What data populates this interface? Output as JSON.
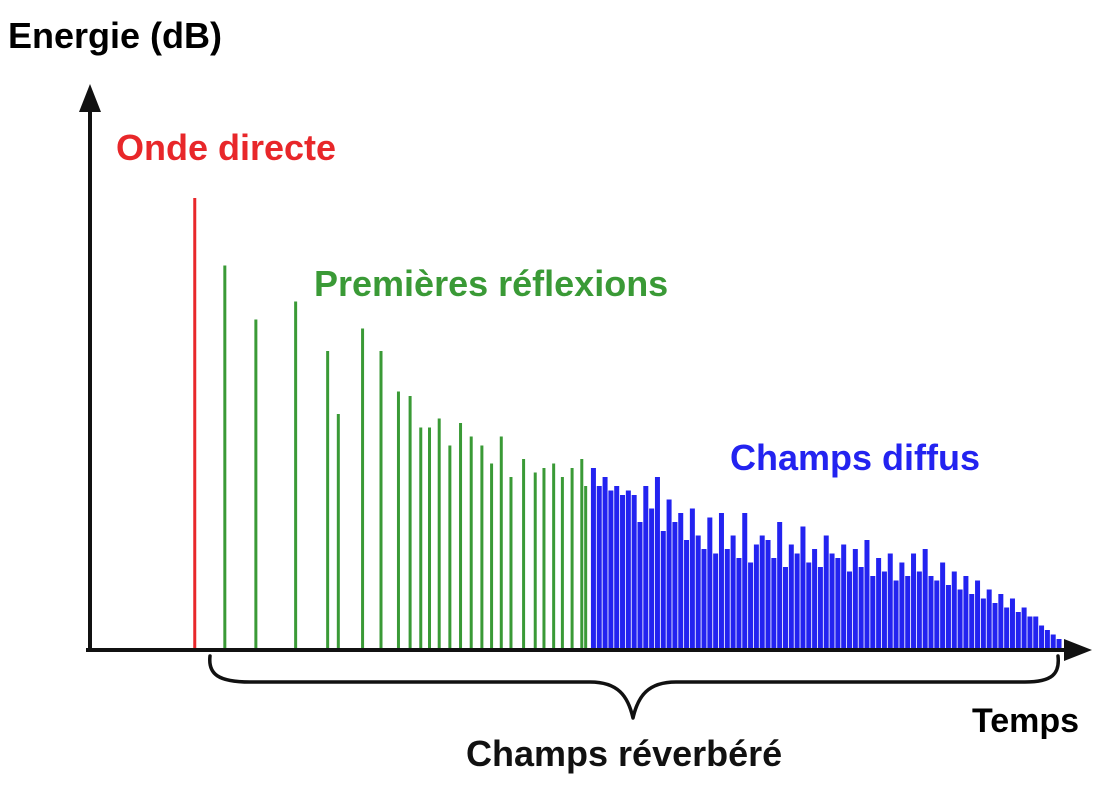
{
  "labels": {
    "y_axis": "Energie (dB)",
    "x_axis": "Temps",
    "direct": "Onde directe",
    "early": "Premières réflexions",
    "diffuse": "Champs diffus",
    "reverberant": "Champs réverbéré"
  },
  "colors": {
    "axis": "#111111",
    "direct": "#e8272a",
    "early": "#3a9a36",
    "diffuse": "#2323f0",
    "text": "#111111"
  },
  "chart_data": {
    "type": "bar",
    "x_range": [
      0,
      1
    ],
    "y_range": [
      0,
      1
    ],
    "series": [
      {
        "name": "Onde directe",
        "color_key": "direct",
        "points": [
          [
            0.108,
            1.0
          ]
        ]
      },
      {
        "name": "Premières réflexions",
        "color_key": "early",
        "points": [
          [
            0.139,
            0.85
          ],
          [
            0.171,
            0.73
          ],
          [
            0.212,
            0.77
          ],
          [
            0.245,
            0.66
          ],
          [
            0.256,
            0.52
          ],
          [
            0.281,
            0.71
          ],
          [
            0.3,
            0.66
          ],
          [
            0.318,
            0.57
          ],
          [
            0.33,
            0.56
          ],
          [
            0.341,
            0.49
          ],
          [
            0.35,
            0.49
          ],
          [
            0.36,
            0.51
          ],
          [
            0.371,
            0.45
          ],
          [
            0.382,
            0.5
          ],
          [
            0.393,
            0.47
          ],
          [
            0.404,
            0.45
          ],
          [
            0.414,
            0.41
          ],
          [
            0.424,
            0.47
          ],
          [
            0.434,
            0.38
          ],
          [
            0.447,
            0.42
          ],
          [
            0.459,
            0.39
          ],
          [
            0.468,
            0.4
          ],
          [
            0.478,
            0.41
          ],
          [
            0.487,
            0.38
          ],
          [
            0.497,
            0.4
          ],
          [
            0.507,
            0.42
          ],
          [
            0.511,
            0.36
          ]
        ]
      },
      {
        "name": "Champs diffus",
        "color_key": "diffuse",
        "points": [
          [
            0.519,
            0.4
          ],
          [
            0.525,
            0.36
          ],
          [
            0.531,
            0.38
          ],
          [
            0.537,
            0.35
          ],
          [
            0.543,
            0.36
          ],
          [
            0.549,
            0.34
          ],
          [
            0.555,
            0.35
          ],
          [
            0.561,
            0.34
          ],
          [
            0.567,
            0.28
          ],
          [
            0.573,
            0.36
          ],
          [
            0.579,
            0.31
          ],
          [
            0.585,
            0.38
          ],
          [
            0.591,
            0.26
          ],
          [
            0.597,
            0.33
          ],
          [
            0.603,
            0.28
          ],
          [
            0.609,
            0.3
          ],
          [
            0.615,
            0.24
          ],
          [
            0.621,
            0.31
          ],
          [
            0.627,
            0.25
          ],
          [
            0.633,
            0.22
          ],
          [
            0.639,
            0.29
          ],
          [
            0.645,
            0.21
          ],
          [
            0.651,
            0.3
          ],
          [
            0.657,
            0.22
          ],
          [
            0.663,
            0.25
          ],
          [
            0.669,
            0.2
          ],
          [
            0.675,
            0.3
          ],
          [
            0.681,
            0.19
          ],
          [
            0.687,
            0.23
          ],
          [
            0.693,
            0.25
          ],
          [
            0.699,
            0.24
          ],
          [
            0.705,
            0.2
          ],
          [
            0.711,
            0.28
          ],
          [
            0.717,
            0.18
          ],
          [
            0.723,
            0.23
          ],
          [
            0.729,
            0.21
          ],
          [
            0.735,
            0.27
          ],
          [
            0.741,
            0.19
          ],
          [
            0.747,
            0.22
          ],
          [
            0.753,
            0.18
          ],
          [
            0.759,
            0.25
          ],
          [
            0.765,
            0.21
          ],
          [
            0.771,
            0.2
          ],
          [
            0.777,
            0.23
          ],
          [
            0.783,
            0.17
          ],
          [
            0.789,
            0.22
          ],
          [
            0.795,
            0.18
          ],
          [
            0.801,
            0.24
          ],
          [
            0.807,
            0.16
          ],
          [
            0.813,
            0.2
          ],
          [
            0.819,
            0.17
          ],
          [
            0.825,
            0.21
          ],
          [
            0.831,
            0.15
          ],
          [
            0.837,
            0.19
          ],
          [
            0.843,
            0.16
          ],
          [
            0.849,
            0.21
          ],
          [
            0.855,
            0.17
          ],
          [
            0.861,
            0.22
          ],
          [
            0.867,
            0.16
          ],
          [
            0.873,
            0.15
          ],
          [
            0.879,
            0.19
          ],
          [
            0.885,
            0.14
          ],
          [
            0.891,
            0.17
          ],
          [
            0.897,
            0.13
          ],
          [
            0.903,
            0.16
          ],
          [
            0.909,
            0.12
          ],
          [
            0.915,
            0.15
          ],
          [
            0.921,
            0.11
          ],
          [
            0.927,
            0.13
          ],
          [
            0.933,
            0.1
          ],
          [
            0.939,
            0.12
          ],
          [
            0.945,
            0.09
          ],
          [
            0.951,
            0.11
          ],
          [
            0.957,
            0.08
          ],
          [
            0.963,
            0.09
          ],
          [
            0.969,
            0.07
          ],
          [
            0.975,
            0.07
          ],
          [
            0.981,
            0.05
          ],
          [
            0.987,
            0.04
          ],
          [
            0.993,
            0.03
          ],
          [
            0.999,
            0.02
          ]
        ]
      }
    ]
  }
}
